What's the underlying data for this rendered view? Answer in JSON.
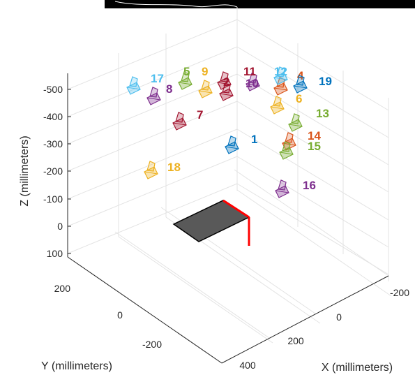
{
  "chart_data": {
    "type": "scatter",
    "title": "",
    "xlabel": "X (millimeters)",
    "ylabel": "Y (millimeters)",
    "zlabel": "Z (millimeters)",
    "x_ticks": [
      "-200",
      "0",
      "200",
      "400"
    ],
    "y_ticks": [
      "200",
      "0",
      "-200"
    ],
    "z_ticks": [
      "-500",
      "-400",
      "-300",
      "-200",
      "-100",
      "0",
      "100"
    ],
    "grid": true,
    "checkerboard_color": "#595959",
    "origin_axes_color": "#ff0000",
    "cameras": [
      {
        "label": "1",
        "color": "#0072BD"
      },
      {
        "label": "2",
        "color": "#A2142F"
      },
      {
        "label": "4",
        "color": "#D95319"
      },
      {
        "label": "5",
        "color": "#77AC30"
      },
      {
        "label": "6",
        "color": "#EDB120"
      },
      {
        "label": "7",
        "color": "#A2142F"
      },
      {
        "label": "8",
        "color": "#7E2F8E"
      },
      {
        "label": "9",
        "color": "#EDB120"
      },
      {
        "label": "10",
        "color": "#7E2F8E"
      },
      {
        "label": "11",
        "color": "#A2142F"
      },
      {
        "label": "12",
        "color": "#4DBEEE"
      },
      {
        "label": "13",
        "color": "#77AC30"
      },
      {
        "label": "14",
        "color": "#D95319"
      },
      {
        "label": "15",
        "color": "#77AC30"
      },
      {
        "label": "16",
        "color": "#7E2F8E"
      },
      {
        "label": "17",
        "color": "#4DBEEE"
      },
      {
        "label": "18",
        "color": "#EDB120"
      },
      {
        "label": "19",
        "color": "#0072BD"
      }
    ]
  }
}
